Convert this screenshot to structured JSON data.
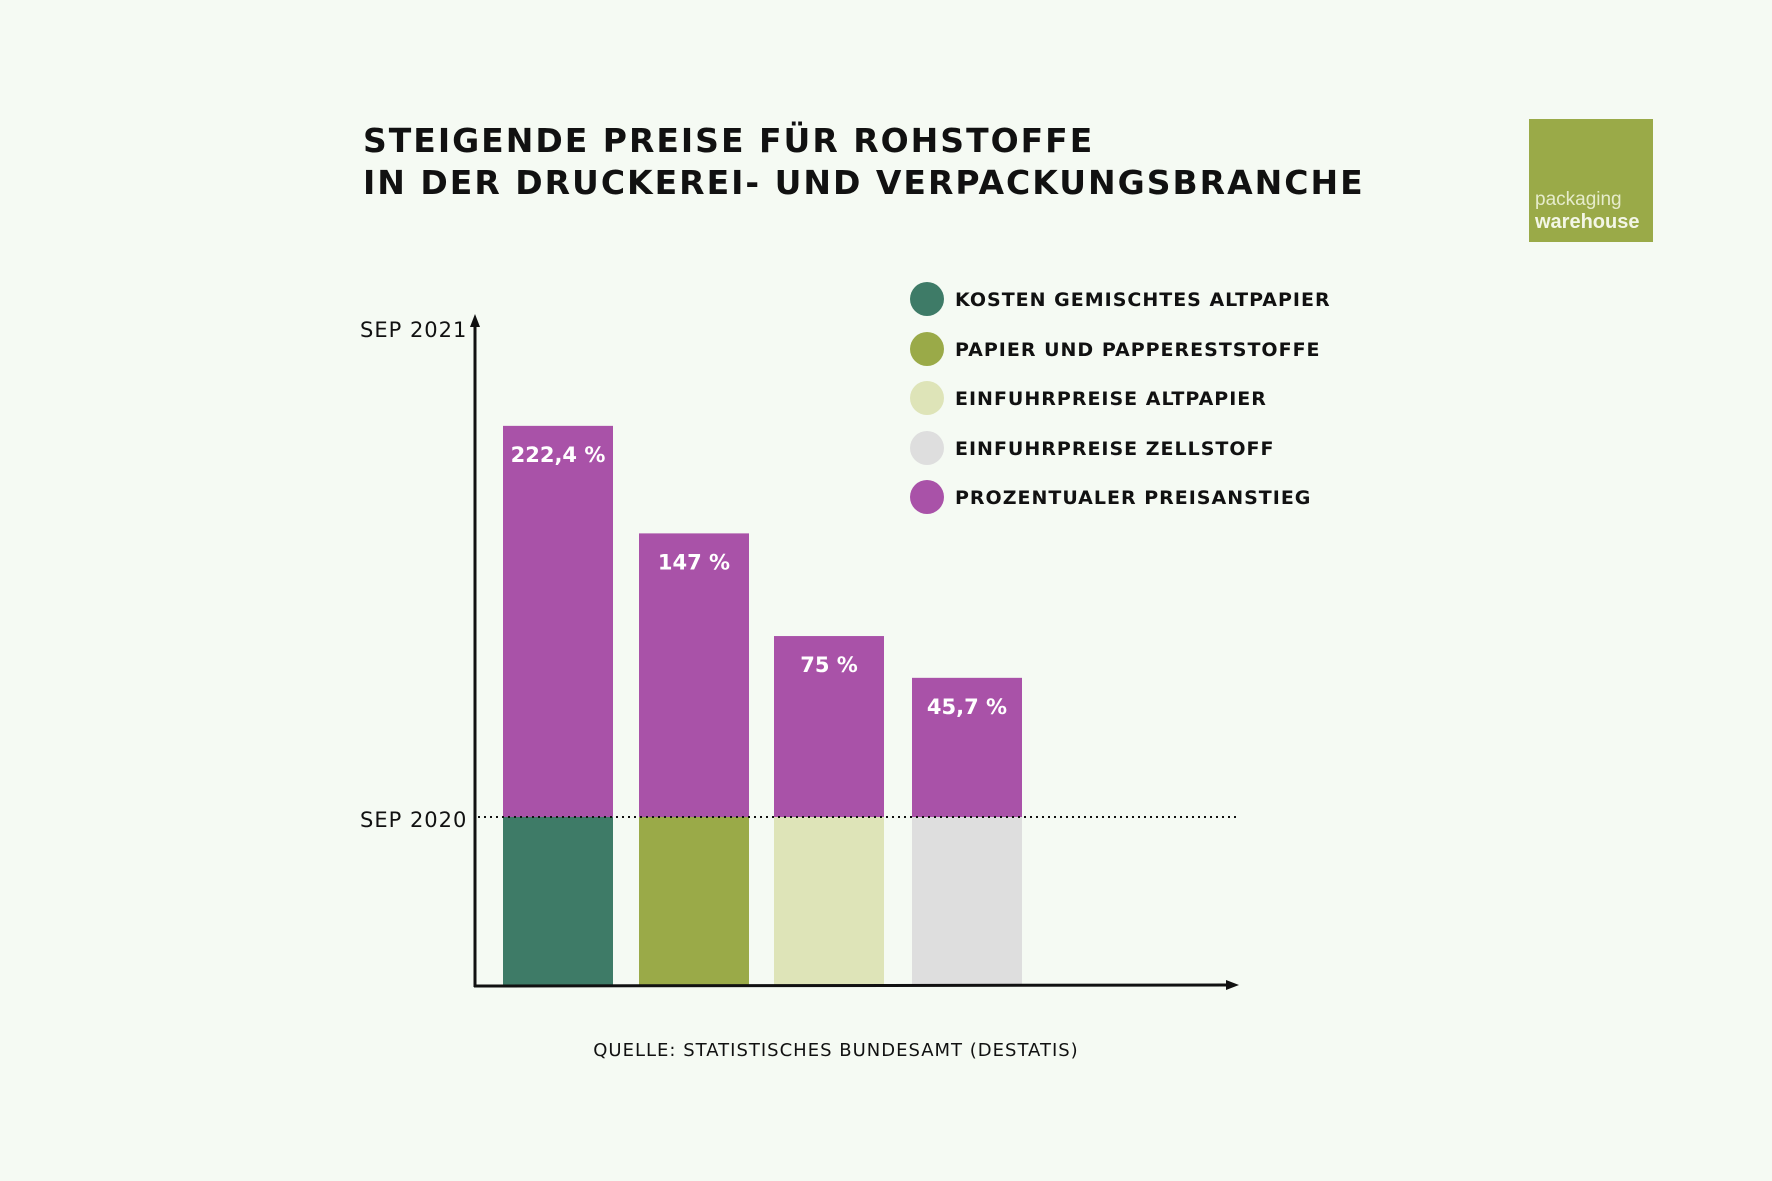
{
  "title": {
    "line1": "STEIGENDE PREISE FÜR ROHSTOFFE",
    "line2": "IN DER DRUCKEREI- UND VERPACKUNGSBRANCHE"
  },
  "logo": {
    "line1": "packaging",
    "line2": "warehouse",
    "color": "#9AAA48"
  },
  "source": "QUELLE: STATISTISCHES BUNDESAMT (DESTATIS)",
  "chart_data": {
    "type": "bar",
    "stacked": true,
    "y_tick_labels": [
      "SEP 2020",
      "SEP 2021"
    ],
    "categories": [
      "KOSTEN GEMISCHTES ALTPAPIER",
      "PAPIER UND PAPPERESTSTOFFE",
      "EINFUHRPREISE ALTPAPIER",
      "EINFUHRPREISE ZELLSTOFF"
    ],
    "category_colors": [
      "#3E7B67",
      "#9AAA48",
      "#DEE4B8",
      "#DEDEDE"
    ],
    "increase_series": {
      "name": "PROZENTUALER PREISANSTIEG",
      "color": "#A952A8",
      "values": [
        222.4,
        147,
        75,
        45.7
      ]
    },
    "data_labels": [
      "222,4 %",
      "147 %",
      "75 %",
      "45,7 %"
    ],
    "grid": false,
    "baseline_reference": "dotted line at SEP 2020",
    "legend_placement": "top-right",
    "legend": [
      {
        "label": "KOSTEN GEMISCHTES ALTPAPIER",
        "color": "#3E7B67"
      },
      {
        "label": "PAPIER UND PAPPERESTSTOFFE",
        "color": "#9AAA48"
      },
      {
        "label": "EINFUHRPREISE ALTPAPIER",
        "color": "#DEE4B8"
      },
      {
        "label": "EINFUHRPREISE ZELLSTOFF",
        "color": "#DEDEDE"
      },
      {
        "label": "PROZENTUALER PREISANSTIEG",
        "color": "#A952A8"
      }
    ]
  }
}
